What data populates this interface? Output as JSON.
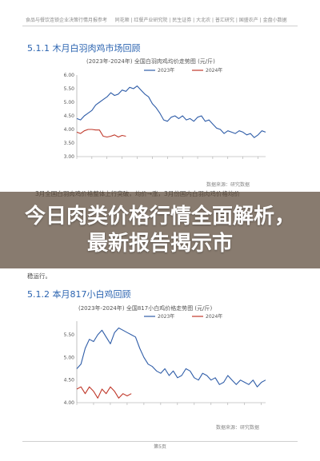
{
  "header": {
    "left": "食品与餐饮连锁企业决策行情月报参考",
    "right": "同花顺 | 红餐产业研究院 | 民生证券 | 大北农 | 普汇研究 | 国盛农产 | 金盘小数据"
  },
  "section1": {
    "title": "5.1.1 木月白羽肉鸡市场回顾",
    "chart_title": "(2023年-2024年) 全国白羽肉鸡均价走势图 (元/斤)",
    "source": "数据来源：研究数据"
  },
  "section2": {
    "title": "5.1.2 本月817小白鸡回顾",
    "chart_title": "(2023年-2024年) 全国817小白鸡价格走势图 (元/斤)",
    "source": "数据来源：研究数据"
  },
  "paragraph": {
    "line1": "3月全国白羽肉鸡价格整体上行突破，均价→涨，3月份国内白羽肉鸡价格均价",
    "tail": "稳运行。"
  },
  "banner": {
    "text": "今日肉类价格行情全面解析，最新报告揭示市"
  },
  "footer": {
    "page": "第5页"
  },
  "chart_data": [
    {
      "type": "line",
      "title": "(2023年-2024年) 全国白羽肉鸡均价走势图 (元/斤)",
      "ylim": [
        3.0,
        6.0
      ],
      "yticks": [
        3.0,
        3.5,
        4.0,
        4.5,
        5.0,
        5.5,
        6.0
      ],
      "series": [
        {
          "name": "2023年",
          "color": "#2f5da8",
          "values": [
            4.4,
            4.35,
            4.5,
            4.6,
            4.7,
            4.9,
            5.0,
            5.1,
            5.2,
            5.35,
            5.25,
            5.3,
            5.45,
            5.4,
            5.55,
            5.5,
            5.6,
            5.45,
            5.3,
            5.2,
            4.95,
            4.8,
            4.6,
            4.35,
            4.3,
            4.45,
            4.5,
            4.4,
            4.5,
            4.35,
            4.4,
            4.3,
            4.45,
            4.5,
            4.3,
            4.35,
            4.2,
            4.05,
            4.0,
            3.85,
            3.95,
            3.9,
            3.85,
            3.95,
            3.9,
            3.8,
            3.85,
            3.7,
            3.8,
            3.95,
            3.9
          ]
        },
        {
          "name": "2024年",
          "color": "#c0392b",
          "values": [
            3.9,
            3.85,
            3.95,
            4.0,
            4.0,
            3.98,
            3.98,
            3.75,
            3.72,
            3.75,
            3.8,
            3.72,
            3.78,
            3.75
          ]
        }
      ]
    },
    {
      "type": "line",
      "title": "(2023年-2024年) 全国817小白鸡价格走势图 (元/斤)",
      "ylim": [
        4.0,
        5.8
      ],
      "yticks": [
        4.0,
        4.5,
        5.0,
        5.5
      ],
      "series": [
        {
          "name": "2023年",
          "color": "#2f5da8",
          "values": [
            4.75,
            4.85,
            5.2,
            5.4,
            5.35,
            5.5,
            5.6,
            5.45,
            5.3,
            5.55,
            5.65,
            5.6,
            5.55,
            5.5,
            5.45,
            5.2,
            5.0,
            4.85,
            4.8,
            4.7,
            4.65,
            4.75,
            4.6,
            4.7,
            4.55,
            4.6,
            4.75,
            4.7,
            4.55,
            4.5,
            4.65,
            4.6,
            4.5,
            4.55,
            4.4,
            4.45,
            4.6,
            4.5,
            4.4,
            4.5,
            4.45,
            4.4,
            4.5,
            4.35,
            4.45,
            4.5
          ]
        },
        {
          "name": "2024年",
          "color": "#c0392b",
          "values": [
            4.3,
            4.35,
            4.2,
            4.35,
            4.25,
            4.1,
            4.3,
            4.2,
            4.35,
            4.25,
            4.1,
            4.2,
            4.15,
            4.2
          ]
        }
      ]
    }
  ]
}
